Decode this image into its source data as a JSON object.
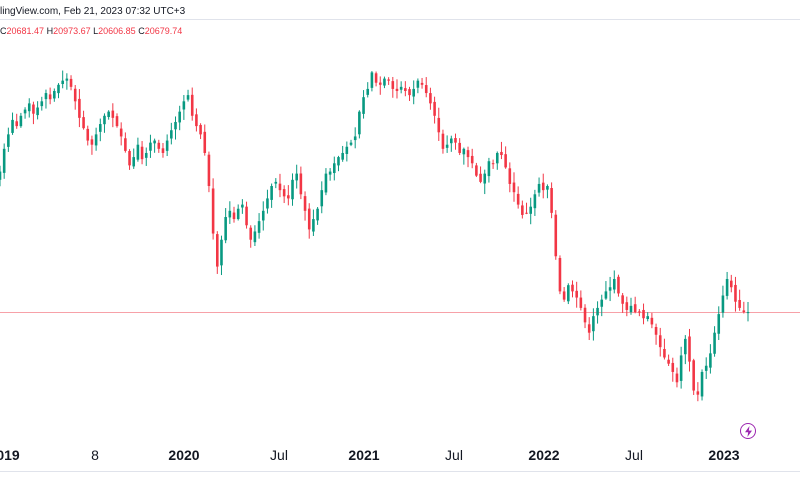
{
  "header": {
    "text": "lingView.com, Feb 21, 2023 07:32 UTC+3"
  },
  "ohlc": {
    "o_label": "C",
    "o_value": "20681.47",
    "h_label": "H",
    "h_value": "20973.67",
    "l_label": "L",
    "l_value": "20606.85",
    "c_label": "C",
    "c_value": "20679.74"
  },
  "colors": {
    "up": "#089981",
    "down": "#f23645",
    "last_price_line": "#f7a1a8",
    "axis_text": "#131722",
    "accent": "#9c27b0"
  },
  "icons": {
    "bolt": "lightning-bolt-icon"
  },
  "chart_data": {
    "type": "candlestick",
    "interval": "weekly",
    "x_ticks": [
      {
        "label": "019",
        "major": true
      },
      {
        "label": "8",
        "major": false
      },
      {
        "label": "2020",
        "major": true
      },
      {
        "label": "Jul",
        "major": false
      },
      {
        "label": "2021",
        "major": true
      },
      {
        "label": "Jul",
        "major": false
      },
      {
        "label": "2022",
        "major": true
      },
      {
        "label": "Jul",
        "major": false
      },
      {
        "label": "2023",
        "major": true
      }
    ],
    "y_range": [
      16200,
      32900
    ],
    "last_close": 20679.74,
    "closes": [
      27500,
      28600,
      29300,
      30000,
      29700,
      30200,
      30500,
      30800,
      30300,
      30600,
      30900,
      31300,
      31000,
      31400,
      31700,
      31900,
      32000,
      31600,
      30900,
      30100,
      29600,
      29000,
      28800,
      29300,
      29800,
      30200,
      30400,
      30100,
      29700,
      29200,
      28500,
      27800,
      28200,
      28800,
      28100,
      28400,
      28900,
      29000,
      28600,
      28400,
      29000,
      29500,
      29900,
      30400,
      30900,
      31200,
      30200,
      29700,
      29300,
      28400,
      26800,
      24500,
      22900,
      24200,
      25300,
      25600,
      25200,
      25700,
      25900,
      24900,
      24200,
      24600,
      25100,
      25600,
      26200,
      26800,
      27000,
      26600,
      26300,
      26200,
      27100,
      27400,
      26400,
      25600,
      24700,
      25200,
      25700,
      26600,
      27400,
      27500,
      27900,
      28200,
      28400,
      28700,
      28900,
      29200,
      30400,
      31100,
      31500,
      32300,
      31800,
      31700,
      32000,
      31900,
      31500,
      31400,
      31600,
      31400,
      31200,
      31500,
      31900,
      31700,
      31300,
      30800,
      30200,
      29400,
      28600,
      28800,
      29100,
      28900,
      28400,
      28600,
      28200,
      27900,
      27300,
      27000,
      27400,
      28000,
      27900,
      28400,
      28300,
      27700,
      26900,
      26500,
      25900,
      25400,
      25500,
      25800,
      26400,
      26900,
      26600,
      26800,
      25500,
      23400,
      21700,
      21300,
      22000,
      21700,
      21400,
      20900,
      20200,
      19700,
      20500,
      20900,
      21300,
      21700,
      21900,
      22300,
      21600,
      21100,
      20800,
      21000,
      20700,
      20700,
      20400,
      20500,
      20100,
      19600,
      19000,
      18500,
      18200,
      17800,
      17300,
      18600,
      19400,
      18300,
      16900,
      16700,
      17800,
      18100,
      18700,
      19700,
      20600,
      21500,
      22300,
      21900,
      21200,
      20900,
      20700,
      20700
    ]
  }
}
